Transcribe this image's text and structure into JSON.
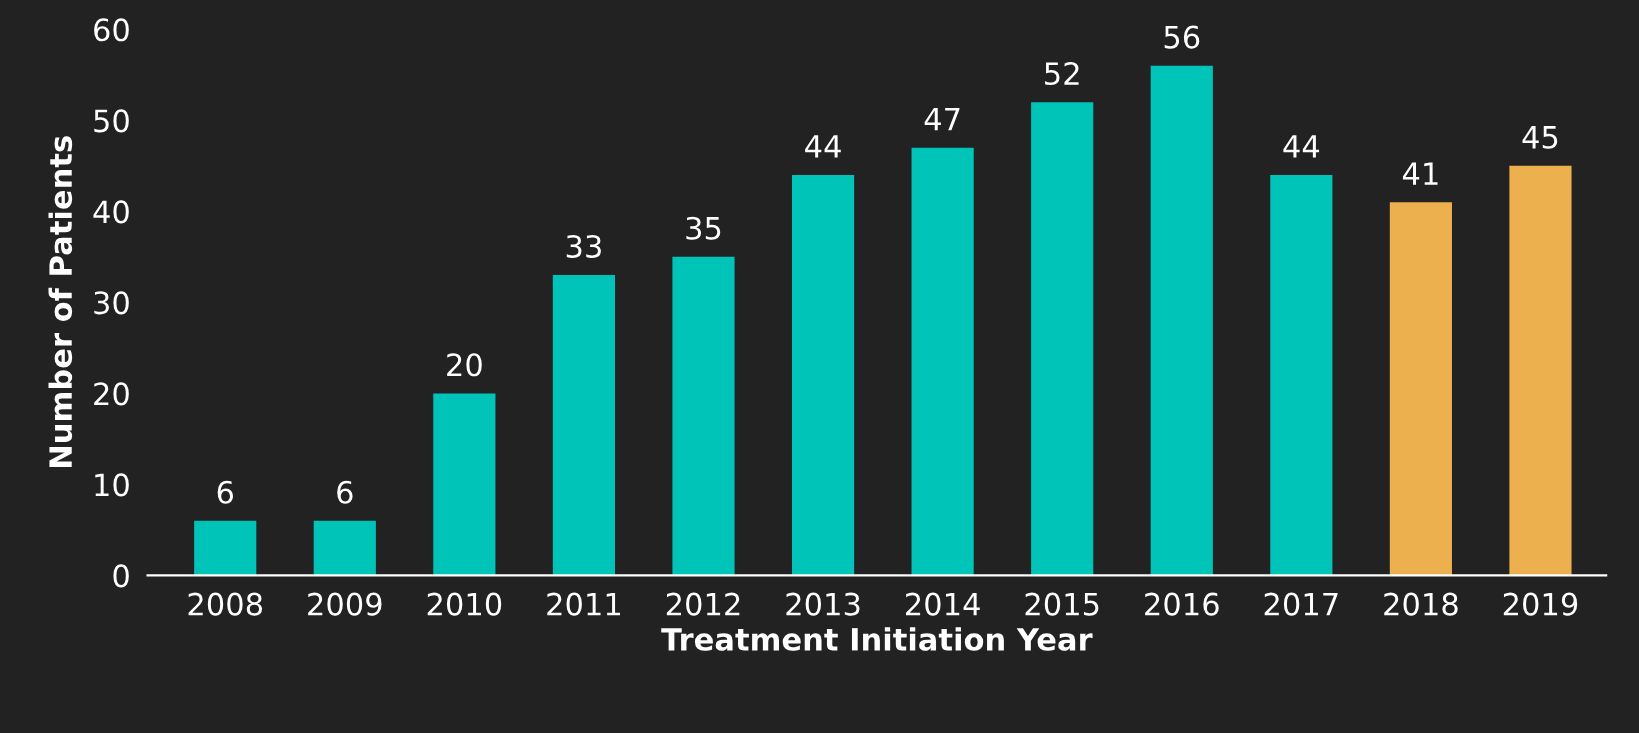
{
  "chart_data": {
    "type": "bar",
    "xlabel": "Treatment Initiation Year",
    "ylabel": "Number of Patients",
    "categories": [
      "2008",
      "2009",
      "2010",
      "2011",
      "2012",
      "2013",
      "2014",
      "2015",
      "2016",
      "2017",
      "2018",
      "2019"
    ],
    "values": [
      6,
      6,
      20,
      33,
      35,
      44,
      47,
      52,
      56,
      44,
      41,
      45
    ],
    "colors": [
      "#00c4b8",
      "#00c4b8",
      "#00c4b8",
      "#00c4b8",
      "#00c4b8",
      "#00c4b8",
      "#00c4b8",
      "#00c4b8",
      "#00c4b8",
      "#00c4b8",
      "#edb04e",
      "#edb04e"
    ],
    "ylim": [
      0,
      60
    ],
    "yticks": [
      0,
      10,
      20,
      30,
      40,
      50,
      60
    ],
    "data_labels": true,
    "grid": false,
    "legend": false
  }
}
